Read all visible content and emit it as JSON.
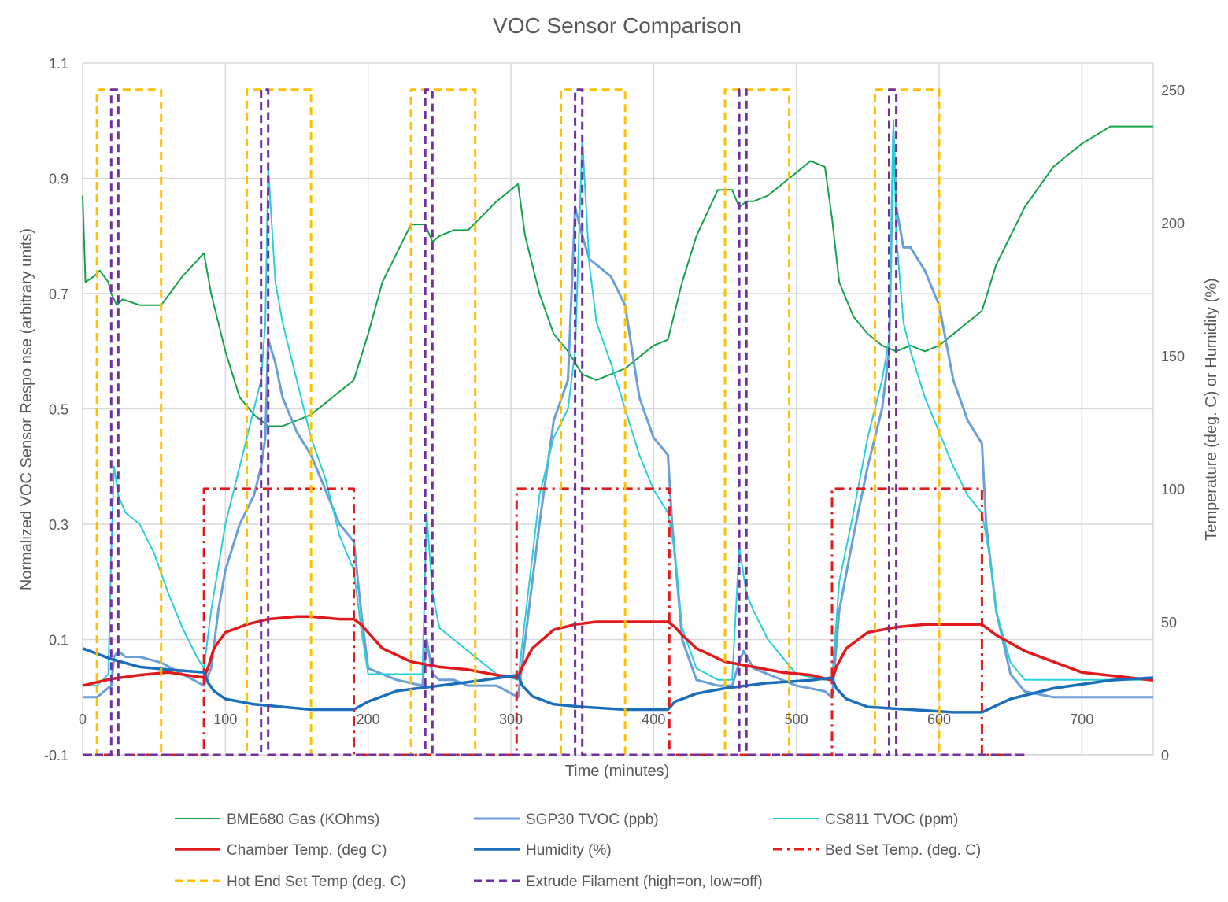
{
  "chart_data": {
    "type": "line",
    "title": "VOC Sensor Comparison",
    "xlabel": "Time (minutes)",
    "ylabel": "Normalized VOC Sensor Respo nse (arbitrary units)",
    "y2label": "Temperature (deg. C) or Humidity (%)",
    "xlim": [
      0,
      750
    ],
    "ylim": [
      -0.1,
      1.1
    ],
    "y2lim": [
      0,
      260
    ],
    "x_ticks": [
      0,
      100,
      200,
      300,
      400,
      500,
      600,
      700
    ],
    "y_ticks": [
      -0.1,
      0.1,
      0.3,
      0.5,
      0.7,
      0.9,
      1.1
    ],
    "y_tick_labels": [
      "-0.1",
      "0.1",
      "0.3",
      "0.5",
      "0.7",
      "0.9",
      "1.1"
    ],
    "y2_ticks": [
      0,
      50,
      100,
      150,
      200,
      250
    ],
    "grid": true,
    "legend_position": "bottom",
    "series": [
      {
        "name": "BME680 Gas (KOhms)",
        "axis": "left",
        "color": "#13a24a",
        "dash": "solid",
        "width": 2,
        "x": [
          0,
          2,
          8,
          12,
          18,
          20,
          24,
          28,
          40,
          55,
          70,
          85,
          90,
          100,
          110,
          120,
          130,
          140,
          150,
          160,
          170,
          190,
          200,
          210,
          230,
          240,
          245,
          250,
          260,
          270,
          290,
          305,
          310,
          320,
          330,
          340,
          350,
          360,
          380,
          400,
          410,
          420,
          430,
          445,
          455,
          460,
          465,
          470,
          480,
          500,
          510,
          520,
          525,
          530,
          540,
          550,
          560,
          570,
          580,
          590,
          600,
          610,
          620,
          630,
          640,
          660,
          680,
          700,
          720,
          740,
          750
        ],
        "y": [
          0.87,
          0.72,
          0.73,
          0.74,
          0.72,
          0.7,
          0.68,
          0.69,
          0.68,
          0.68,
          0.73,
          0.77,
          0.7,
          0.6,
          0.52,
          0.49,
          0.47,
          0.47,
          0.48,
          0.49,
          0.51,
          0.55,
          0.63,
          0.72,
          0.82,
          0.82,
          0.79,
          0.8,
          0.81,
          0.81,
          0.86,
          0.89,
          0.8,
          0.7,
          0.63,
          0.6,
          0.56,
          0.55,
          0.57,
          0.61,
          0.62,
          0.72,
          0.8,
          0.88,
          0.88,
          0.85,
          0.86,
          0.86,
          0.87,
          0.91,
          0.93,
          0.92,
          0.83,
          0.72,
          0.66,
          0.63,
          0.61,
          0.6,
          0.61,
          0.6,
          0.61,
          0.63,
          0.65,
          0.67,
          0.75,
          0.85,
          0.92,
          0.96,
          0.99,
          0.99,
          0.99
        ]
      },
      {
        "name": "SGP30 TVOC (ppb)",
        "axis": "left",
        "color": "#6b9fd8",
        "dash": "solid",
        "width": 3,
        "x": [
          0,
          10,
          20,
          22,
          25,
          30,
          40,
          55,
          70,
          85,
          90,
          95,
          100,
          110,
          120,
          125,
          128,
          130,
          135,
          140,
          150,
          160,
          170,
          180,
          190,
          195,
          200,
          220,
          238,
          241,
          245,
          250,
          260,
          270,
          290,
          305,
          320,
          330,
          340,
          345,
          350,
          355,
          360,
          370,
          380,
          390,
          400,
          410,
          413,
          420,
          430,
          445,
          455,
          460,
          463,
          470,
          480,
          500,
          520,
          525,
          530,
          540,
          550,
          560,
          565,
          568,
          570,
          575,
          580,
          590,
          600,
          610,
          620,
          630,
          633,
          640,
          650,
          660,
          680,
          700,
          750
        ],
        "y": [
          0.0,
          0.0,
          0.02,
          0.07,
          0.08,
          0.07,
          0.07,
          0.06,
          0.04,
          0.02,
          0.05,
          0.15,
          0.22,
          0.3,
          0.35,
          0.4,
          0.45,
          0.62,
          0.58,
          0.52,
          0.46,
          0.42,
          0.36,
          0.3,
          0.27,
          0.15,
          0.05,
          0.03,
          0.02,
          0.1,
          0.04,
          0.03,
          0.03,
          0.02,
          0.02,
          0.0,
          0.3,
          0.48,
          0.55,
          0.85,
          0.8,
          0.76,
          0.75,
          0.73,
          0.68,
          0.52,
          0.45,
          0.42,
          0.3,
          0.1,
          0.03,
          0.02,
          0.02,
          0.06,
          0.08,
          0.05,
          0.04,
          0.02,
          0.01,
          0.0,
          0.15,
          0.28,
          0.4,
          0.5,
          0.6,
          0.98,
          0.85,
          0.78,
          0.78,
          0.74,
          0.68,
          0.55,
          0.48,
          0.44,
          0.3,
          0.15,
          0.04,
          0.01,
          0.0,
          0.0,
          0.0
        ]
      },
      {
        "name": "CS811 TVOC (ppm)",
        "axis": "left",
        "color": "#27d0d8",
        "dash": "solid",
        "width": 2,
        "x": [
          0,
          10,
          18,
          20,
          22,
          25,
          30,
          40,
          50,
          60,
          70,
          80,
          85,
          90,
          100,
          110,
          120,
          125,
          128,
          130,
          135,
          140,
          150,
          160,
          170,
          180,
          190,
          195,
          200,
          230,
          238,
          241,
          245,
          250,
          260,
          270,
          280,
          290,
          305,
          320,
          330,
          340,
          345,
          350,
          355,
          360,
          370,
          380,
          390,
          400,
          410,
          415,
          420,
          430,
          445,
          455,
          460,
          465,
          470,
          480,
          500,
          520,
          525,
          530,
          540,
          550,
          560,
          565,
          568,
          570,
          575,
          580,
          590,
          600,
          610,
          620,
          630,
          635,
          640,
          650,
          660,
          680,
          700,
          750
        ],
        "y": [
          0.02,
          0.02,
          0.04,
          0.25,
          0.4,
          0.35,
          0.32,
          0.3,
          0.25,
          0.18,
          0.12,
          0.07,
          0.05,
          0.15,
          0.3,
          0.4,
          0.5,
          0.55,
          0.65,
          0.92,
          0.72,
          0.65,
          0.55,
          0.45,
          0.38,
          0.28,
          0.22,
          0.12,
          0.04,
          0.04,
          0.04,
          0.32,
          0.18,
          0.12,
          0.1,
          0.08,
          0.06,
          0.04,
          0.03,
          0.35,
          0.45,
          0.5,
          0.6,
          0.97,
          0.75,
          0.65,
          0.58,
          0.5,
          0.42,
          0.36,
          0.32,
          0.25,
          0.12,
          0.05,
          0.03,
          0.03,
          0.26,
          0.18,
          0.15,
          0.1,
          0.04,
          0.03,
          0.03,
          0.2,
          0.32,
          0.45,
          0.55,
          0.62,
          1.0,
          0.8,
          0.65,
          0.6,
          0.52,
          0.46,
          0.4,
          0.35,
          0.32,
          0.25,
          0.15,
          0.06,
          0.03,
          0.03,
          0.03,
          0.03
        ]
      },
      {
        "name": "Chamber Temp. (deg C)",
        "axis": "right",
        "color": "#e31a1c",
        "dash": "solid",
        "width": 3.5,
        "x": [
          0,
          20,
          40,
          60,
          85,
          88,
          92,
          100,
          115,
          130,
          150,
          160,
          180,
          190,
          195,
          200,
          210,
          230,
          250,
          270,
          290,
          305,
          308,
          315,
          330,
          345,
          360,
          380,
          400,
          410,
          415,
          420,
          430,
          450,
          470,
          490,
          510,
          525,
          528,
          535,
          550,
          570,
          590,
          610,
          625,
          630,
          640,
          660,
          680,
          700,
          750
        ],
        "y": [
          26,
          28.5,
          30,
          31,
          29,
          33,
          40,
          46,
          49,
          51,
          52,
          52,
          51,
          51,
          49,
          46,
          40,
          35,
          33,
          32,
          30,
          29,
          33,
          40,
          47,
          49,
          50,
          50,
          50,
          50,
          48,
          45,
          40,
          35,
          33,
          31,
          30,
          28,
          33,
          40,
          46,
          48,
          49,
          49,
          49,
          49,
          45,
          39,
          35,
          31,
          28
        ]
      },
      {
        "name": "Humidity (%)",
        "axis": "right",
        "color": "#1b6fba",
        "dash": "solid",
        "width": 3.5,
        "x": [
          0,
          20,
          40,
          60,
          85,
          88,
          92,
          100,
          120,
          140,
          160,
          180,
          190,
          200,
          220,
          250,
          280,
          305,
          308,
          315,
          330,
          350,
          380,
          400,
          410,
          415,
          430,
          450,
          480,
          510,
          525,
          528,
          535,
          550,
          580,
          610,
          630,
          650,
          680,
          720,
          750
        ],
        "y": [
          40,
          36,
          33,
          32,
          31,
          27,
          24,
          21,
          19,
          18,
          17,
          17,
          17,
          20,
          24,
          26,
          28,
          30,
          26,
          22,
          19,
          18,
          17,
          17,
          17,
          20,
          23,
          25,
          27,
          28,
          29,
          25,
          21,
          18,
          17,
          16,
          16,
          21,
          25,
          28,
          29
        ]
      },
      {
        "name": "Bed Set Temp. (deg. C)",
        "axis": "right",
        "color": "#e31a1c",
        "dash": "dashdot",
        "width": 3,
        "x": [
          0,
          85,
          85,
          190,
          190,
          304,
          304,
          411,
          411,
          525,
          525,
          630,
          630,
          660
        ],
        "y": [
          0,
          0,
          100,
          100,
          0,
          0,
          100,
          100,
          0,
          0,
          100,
          100,
          0,
          0
        ]
      },
      {
        "name": "Hot End Set Temp (deg. C)",
        "axis": "right",
        "color": "#ffc000",
        "dash": "dash",
        "width": 3,
        "x": [
          0,
          10,
          10,
          55,
          55,
          115,
          115,
          160,
          160,
          230,
          230,
          275,
          275,
          335,
          335,
          380,
          380,
          450,
          450,
          495,
          495,
          555,
          555,
          600,
          600,
          660
        ],
        "y": [
          0,
          0,
          250,
          250,
          0,
          0,
          250,
          250,
          0,
          0,
          250,
          250,
          0,
          0,
          250,
          250,
          0,
          0,
          250,
          250,
          0,
          0,
          250,
          250,
          0,
          0
        ]
      },
      {
        "name": "Extrude Filament (high=on, low=off)",
        "axis": "right",
        "color": "#7030a0",
        "dash": "dash",
        "width": 3,
        "x": [
          0,
          20,
          20,
          25,
          25,
          125,
          125,
          130,
          130,
          240,
          240,
          245,
          245,
          345,
          345,
          350,
          350,
          460,
          460,
          465,
          465,
          565,
          565,
          570,
          570,
          660
        ],
        "y": [
          0,
          0,
          250,
          250,
          0,
          0,
          250,
          250,
          0,
          0,
          250,
          250,
          0,
          0,
          250,
          250,
          0,
          0,
          250,
          250,
          0,
          0,
          250,
          250,
          0,
          0
        ]
      }
    ]
  }
}
